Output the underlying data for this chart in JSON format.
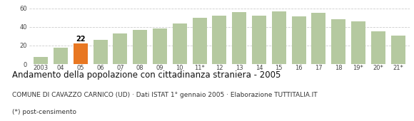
{
  "categories": [
    "2003",
    "04",
    "05",
    "06",
    "07",
    "08",
    "09",
    "10",
    "11*",
    "12",
    "13",
    "14",
    "15",
    "16",
    "17",
    "18",
    "19*",
    "20*",
    "21*"
  ],
  "values": [
    8,
    18,
    22,
    26,
    33,
    37,
    38,
    44,
    50,
    52,
    56,
    52,
    57,
    51,
    55,
    48,
    46,
    35,
    31
  ],
  "highlight_index": 2,
  "bar_color": "#b5c9a0",
  "highlight_color": "#e87722",
  "highlight_label": "22",
  "ylim": [
    0,
    65
  ],
  "yticks": [
    0,
    20,
    40,
    60
  ],
  "grid_color": "#cccccc",
  "bg_color": "#ffffff",
  "title": "Andamento della popolazione con cittadinanza straniera - 2005",
  "subtitle": "COMUNE DI CAVAZZO CARNICO (UD) · Dati ISTAT 1° gennaio 2005 · Elaborazione TUTTITALIA.IT",
  "footnote": "(*) post-censimento",
  "title_fontsize": 8.5,
  "subtitle_fontsize": 6.5,
  "footnote_fontsize": 6.5,
  "tick_fontsize": 6.0,
  "annot_fontsize": 7.0
}
